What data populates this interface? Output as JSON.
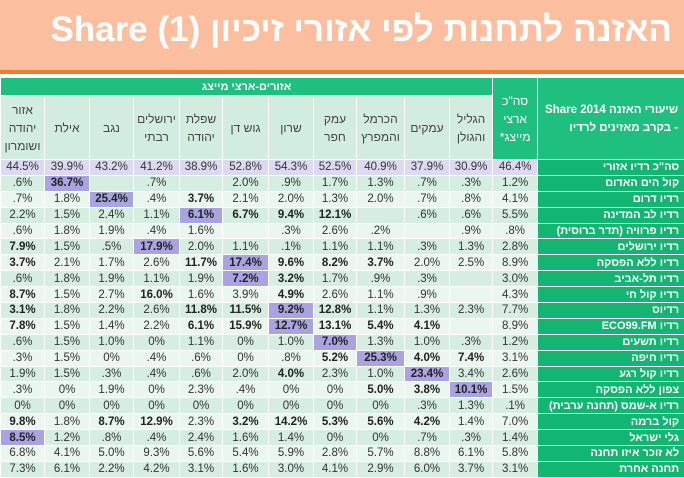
{
  "title": "האזנה לתחנות לפי אזורי זיכיון Share (1)",
  "table": {
    "corner_header": "שיעורי האזנה Share 2014 - בקרב מאזינים לרדיו",
    "group_header": "אזורים-ארצי מייצג",
    "total_header": "סה\"כ ארצי מייצג*",
    "columns": [
      "אזור יהודה ושומרון",
      "אילת",
      "נגב",
      "ירושלים רבתי",
      "שפלת יהודה",
      "גוש דן",
      "שרון",
      "עמק חפר",
      "הכרמל והמפרץ",
      "עמקים",
      "הגליל והגולן"
    ],
    "rows": [
      {
        "label": "סה\"כ רדיו אזורי",
        "values": [
          "44.5%",
          "39.9%",
          "43.2%",
          "41.2%",
          "38.9%",
          "52.8%",
          "54.3%",
          "52.5%",
          "40.9%",
          "37.9%",
          "30.9%",
          "46.4%"
        ],
        "bold": [],
        "highlight": -1
      },
      {
        "label": "קול הים האדום",
        "values": [
          ".6%",
          "36.7%",
          "",
          ".7%",
          "",
          "2.0%",
          ".9%",
          "1.7%",
          "1.3%",
          ".7%",
          ".3%",
          "1.2%"
        ],
        "bold": [],
        "highlight": 1
      },
      {
        "label": "רדיו דרום",
        "values": [
          ".7%",
          "1.8%",
          "25.4%",
          ".4%",
          "3.7%",
          "2.1%",
          "2.0%",
          "1.3%",
          "2.0%",
          ".7%",
          ".8%",
          "4.1%"
        ],
        "bold": [
          4
        ],
        "highlight": 2
      },
      {
        "label": "רדיו לב המדינה",
        "values": [
          "2.2%",
          "1.5%",
          "2.4%",
          "1.1%",
          "6.1%",
          "6.7%",
          "9.4%",
          "12.1%",
          "",
          ".6%",
          ".6%",
          "5.5%"
        ],
        "bold": [
          5,
          6,
          7
        ],
        "highlight": 4
      },
      {
        "label": "רדיו פרוויה (תדר ברוסית)",
        "values": [
          ".6%",
          "1.8%",
          "1.9%",
          ".4%",
          "1.6%",
          "",
          ".3%",
          "2.6%",
          ".2%",
          "",
          ".9%",
          ".8%"
        ],
        "bold": [],
        "highlight": -1
      },
      {
        "label": "רדיו ירושלים",
        "values": [
          "7.9%",
          "1.5%",
          ".5%",
          "17.9%",
          "2.0%",
          "1.1%",
          ".1%",
          "1.1%",
          "1.1%",
          ".3%",
          "1.3%",
          "2.8%"
        ],
        "bold": [
          0
        ],
        "highlight": 3
      },
      {
        "label": "רדיו ללא הפסקה",
        "values": [
          "3.7%",
          "2.1%",
          "1.7%",
          "2.6%",
          "11.7%",
          "17.4%",
          "9.6%",
          "8.2%",
          "3.7%",
          "2.0%",
          "2.5%",
          "8.9%"
        ],
        "bold": [
          0,
          4,
          6,
          7,
          8
        ],
        "highlight": 5
      },
      {
        "label": "רדיו תל-אביב",
        "values": [
          ".6%",
          "1.8%",
          "1.9%",
          "1.1%",
          "1.9%",
          "7.2%",
          "3.2%",
          "1.7%",
          ".9%",
          ".3%",
          "",
          "3.0%"
        ],
        "bold": [
          6
        ],
        "highlight": 5
      },
      {
        "label": "רדיו קול חי",
        "values": [
          "8.7%",
          "1.5%",
          "2.7%",
          "16.0%",
          "1.6%",
          "3.9%",
          "4.9%",
          "2.6%",
          "1.1%",
          ".9%",
          "",
          "4.3%"
        ],
        "bold": [
          0,
          3,
          6
        ],
        "highlight": -1
      },
      {
        "label": "רדיוס",
        "values": [
          "3.1%",
          "1.8%",
          "2.2%",
          "2.6%",
          "11.8%",
          "11.5%",
          "9.2%",
          "12.8%",
          "1.1%",
          "1.3%",
          "2.3%",
          "7.7%"
        ],
        "bold": [
          0,
          4,
          5,
          7
        ],
        "highlight": 6
      },
      {
        "label": "רדיו ECO99.FM",
        "values": [
          "7.8%",
          "1.5%",
          "1.4%",
          "2.2%",
          "6.1%",
          "15.9%",
          "12.7%",
          "13.1%",
          "5.4%",
          "4.1%",
          "",
          "8.9%"
        ],
        "bold": [
          0,
          4,
          5,
          7,
          8,
          9
        ],
        "highlight": 6
      },
      {
        "label": "רדיו תשעים",
        "values": [
          ".6%",
          "1.5%",
          "1.0%",
          "0%",
          "1.1%",
          "0%",
          "1.0%",
          "7.0%",
          "1.3%",
          "1.0%",
          ".3%",
          "1.2%"
        ],
        "bold": [],
        "highlight": 7
      },
      {
        "label": "רדיו חיפה",
        "values": [
          ".3%",
          "1.5%",
          "0%",
          ".4%",
          ".6%",
          "0%",
          ".8%",
          "5.2%",
          "25.3%",
          "4.0%",
          "7.4%",
          "3.1%"
        ],
        "bold": [
          7,
          9,
          10
        ],
        "highlight": 8
      },
      {
        "label": "רדיו קול רגע",
        "values": [
          "1.9%",
          "1.5%",
          ".3%",
          ".4%",
          ".6%",
          "2.0%",
          "4.0%",
          "2.3%",
          "1.0%",
          "23.4%",
          "3.4%",
          "2.6%"
        ],
        "bold": [
          6
        ],
        "highlight": 9
      },
      {
        "label": "צפון ללא הפסקה",
        "values": [
          ".3%",
          "0%",
          "1.9%",
          "0%",
          "2.3%",
          ".4%",
          "0%",
          "0%",
          "5.0%",
          "3.8%",
          "10.1%",
          "1.5%"
        ],
        "bold": [
          8,
          9
        ],
        "highlight": 10
      },
      {
        "label": "רדיו א-שמס (תחנה ערבית)",
        "values": [
          "0%",
          "0%",
          "0%",
          "0%",
          "0%",
          "0%",
          "0%",
          "0%",
          "0%",
          ".3%",
          "1.3%",
          ".1%"
        ],
        "bold": [],
        "highlight": -1
      },
      {
        "label": "קול ברמה",
        "values": [
          "9.8%",
          "1.8%",
          "8.7%",
          "12.9%",
          "2.3%",
          "3.2%",
          "14.2%",
          "5.3%",
          "5.6%",
          "4.2%",
          "1.4%",
          "7.0%"
        ],
        "bold": [
          0,
          2,
          3,
          5,
          6,
          7,
          8,
          9
        ],
        "highlight": -1
      },
      {
        "label": "גלי ישראל",
        "values": [
          "8.5%",
          "1.2%",
          ".8%",
          ".4%",
          "2.4%",
          "1.6%",
          "1.4%",
          "0%",
          "0%",
          ".7%",
          ".3%",
          "1.4%"
        ],
        "bold": [],
        "highlight": 0
      },
      {
        "label": "לא זוכר איזו תחנה",
        "values": [
          "6.8%",
          "4.1%",
          "5.0%",
          "9.3%",
          "5.6%",
          "5.4%",
          "5.9%",
          "2.8%",
          "5.7%",
          "8.8%",
          "6.1%",
          "5.8%"
        ],
        "bold": [],
        "highlight": -1
      },
      {
        "label": "תחנה אחרת",
        "values": [
          "7.3%",
          "6.1%",
          "2.2%",
          "4.2%",
          "3.1%",
          "1.6%",
          "3.0%",
          "4.1%",
          "2.9%",
          "6.0%",
          "3.7%",
          "3.1%"
        ],
        "bold": [],
        "highlight": -1
      }
    ]
  },
  "colors": {
    "title_bg": "#fbbf9f",
    "accent": "#f07c30",
    "header_green": "#1fbf80",
    "highlight": "#a9a3e2"
  }
}
